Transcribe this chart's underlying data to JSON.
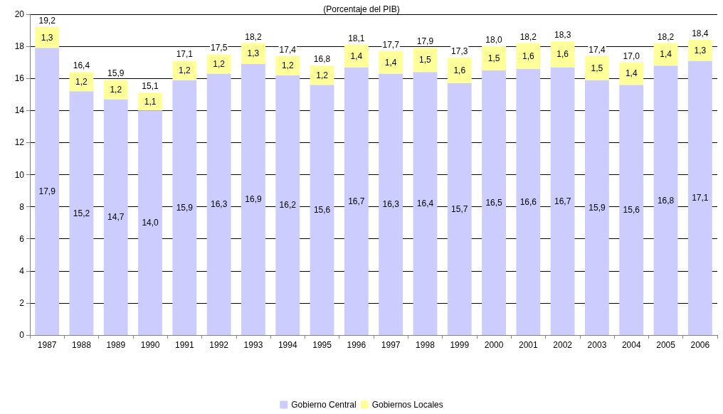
{
  "chart_data": {
    "type": "bar",
    "title": "(Porcentaje del PIB)",
    "stacked": true,
    "categories": [
      "1987",
      "1988",
      "1989",
      "1990",
      "1991",
      "1992",
      "1993",
      "1994",
      "1995",
      "1996",
      "1997",
      "1998",
      "1999",
      "2000",
      "2001",
      "2002",
      "2003",
      "2004",
      "2005",
      "2006"
    ],
    "series": [
      {
        "name": "Gobierno Central",
        "color": "#ccccff",
        "values": [
          17.9,
          15.2,
          14.7,
          14.0,
          15.9,
          16.3,
          16.9,
          16.2,
          15.6,
          16.7,
          16.3,
          16.4,
          15.7,
          16.5,
          16.6,
          16.7,
          15.9,
          15.6,
          16.8,
          17.1
        ],
        "value_labels": [
          "17,9",
          "15,2",
          "14,7",
          "14,0",
          "15,9",
          "16,3",
          "16,9",
          "16,2",
          "15,6",
          "16,7",
          "16,3",
          "16,4",
          "15,7",
          "16,5",
          "16,6",
          "16,7",
          "15,9",
          "15,6",
          "16,8",
          "17,1"
        ]
      },
      {
        "name": "Gobiernos Locales",
        "color": "#ffff99",
        "values": [
          1.3,
          1.2,
          1.2,
          1.1,
          1.2,
          1.2,
          1.3,
          1.2,
          1.2,
          1.4,
          1.4,
          1.5,
          1.6,
          1.5,
          1.6,
          1.6,
          1.5,
          1.4,
          1.4,
          1.3
        ],
        "value_labels": [
          "1,3",
          "1,2",
          "1,2",
          "1,1",
          "1,2",
          "1,2",
          "1,3",
          "1,2",
          "1,2",
          "1,4",
          "1,4",
          "1,5",
          "1,6",
          "1,5",
          "1,6",
          "1,6",
          "1,5",
          "1,4",
          "1,4",
          "1,3"
        ]
      }
    ],
    "totals": [
      "19,2",
      "16,4",
      "15,9",
      "15,1",
      "17,1",
      "17,5",
      "18,2",
      "17,4",
      "16,8",
      "18,1",
      "17,7",
      "17,9",
      "17,3",
      "18,0",
      "18,2",
      "18,3",
      "17,4",
      "17,0",
      "18,2",
      "18,4"
    ],
    "ylim": [
      0,
      20
    ],
    "yticks": [
      0,
      2,
      4,
      6,
      8,
      10,
      12,
      14,
      16,
      18,
      20
    ],
    "grid": "y",
    "legend": "bottom"
  }
}
